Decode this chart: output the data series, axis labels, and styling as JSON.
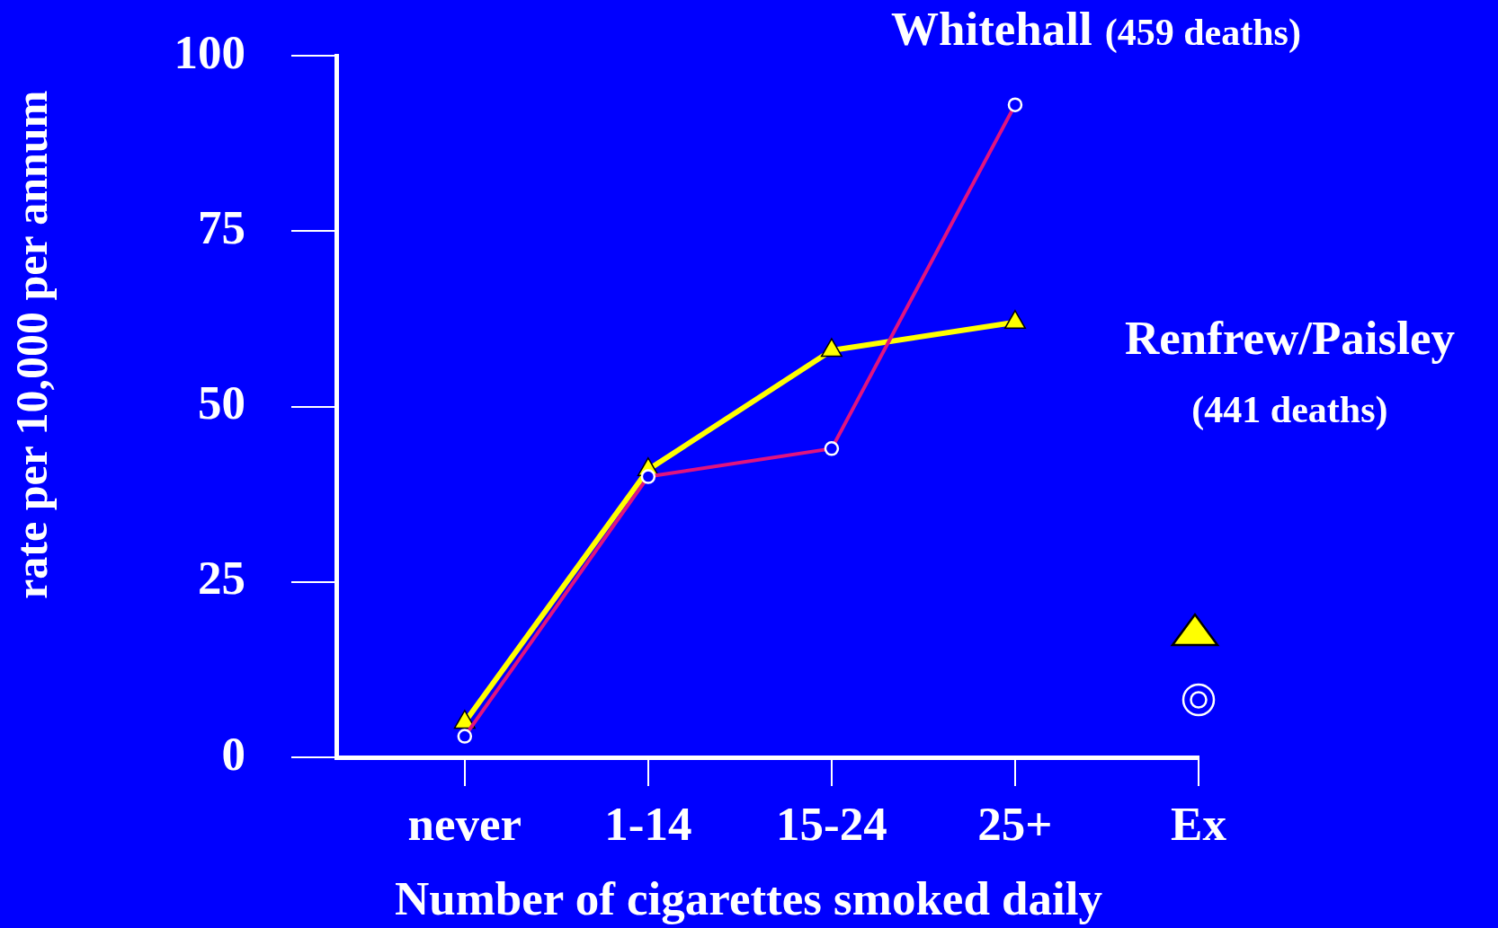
{
  "chart_data": {
    "type": "line",
    "xlabel": "Number of cigarettes smoked daily",
    "ylabel": "rate per 10,000 per annum",
    "categories": [
      "never",
      "1-14",
      "15-24",
      "25+",
      "Ex"
    ],
    "series": [
      {
        "name": "Renfrew/Paisley (441 deaths)",
        "color": "#ffff00",
        "marker": "triangle",
        "values": [
          5,
          41,
          58,
          62,
          null
        ]
      },
      {
        "name": "Whitehall (459 deaths)",
        "color": "#e0147f",
        "marker": "circle",
        "values": [
          3,
          40,
          44,
          93,
          null
        ]
      }
    ],
    "ylim": [
      0,
      100
    ],
    "yticks": [
      0,
      25,
      50,
      75,
      100
    ]
  }
}
